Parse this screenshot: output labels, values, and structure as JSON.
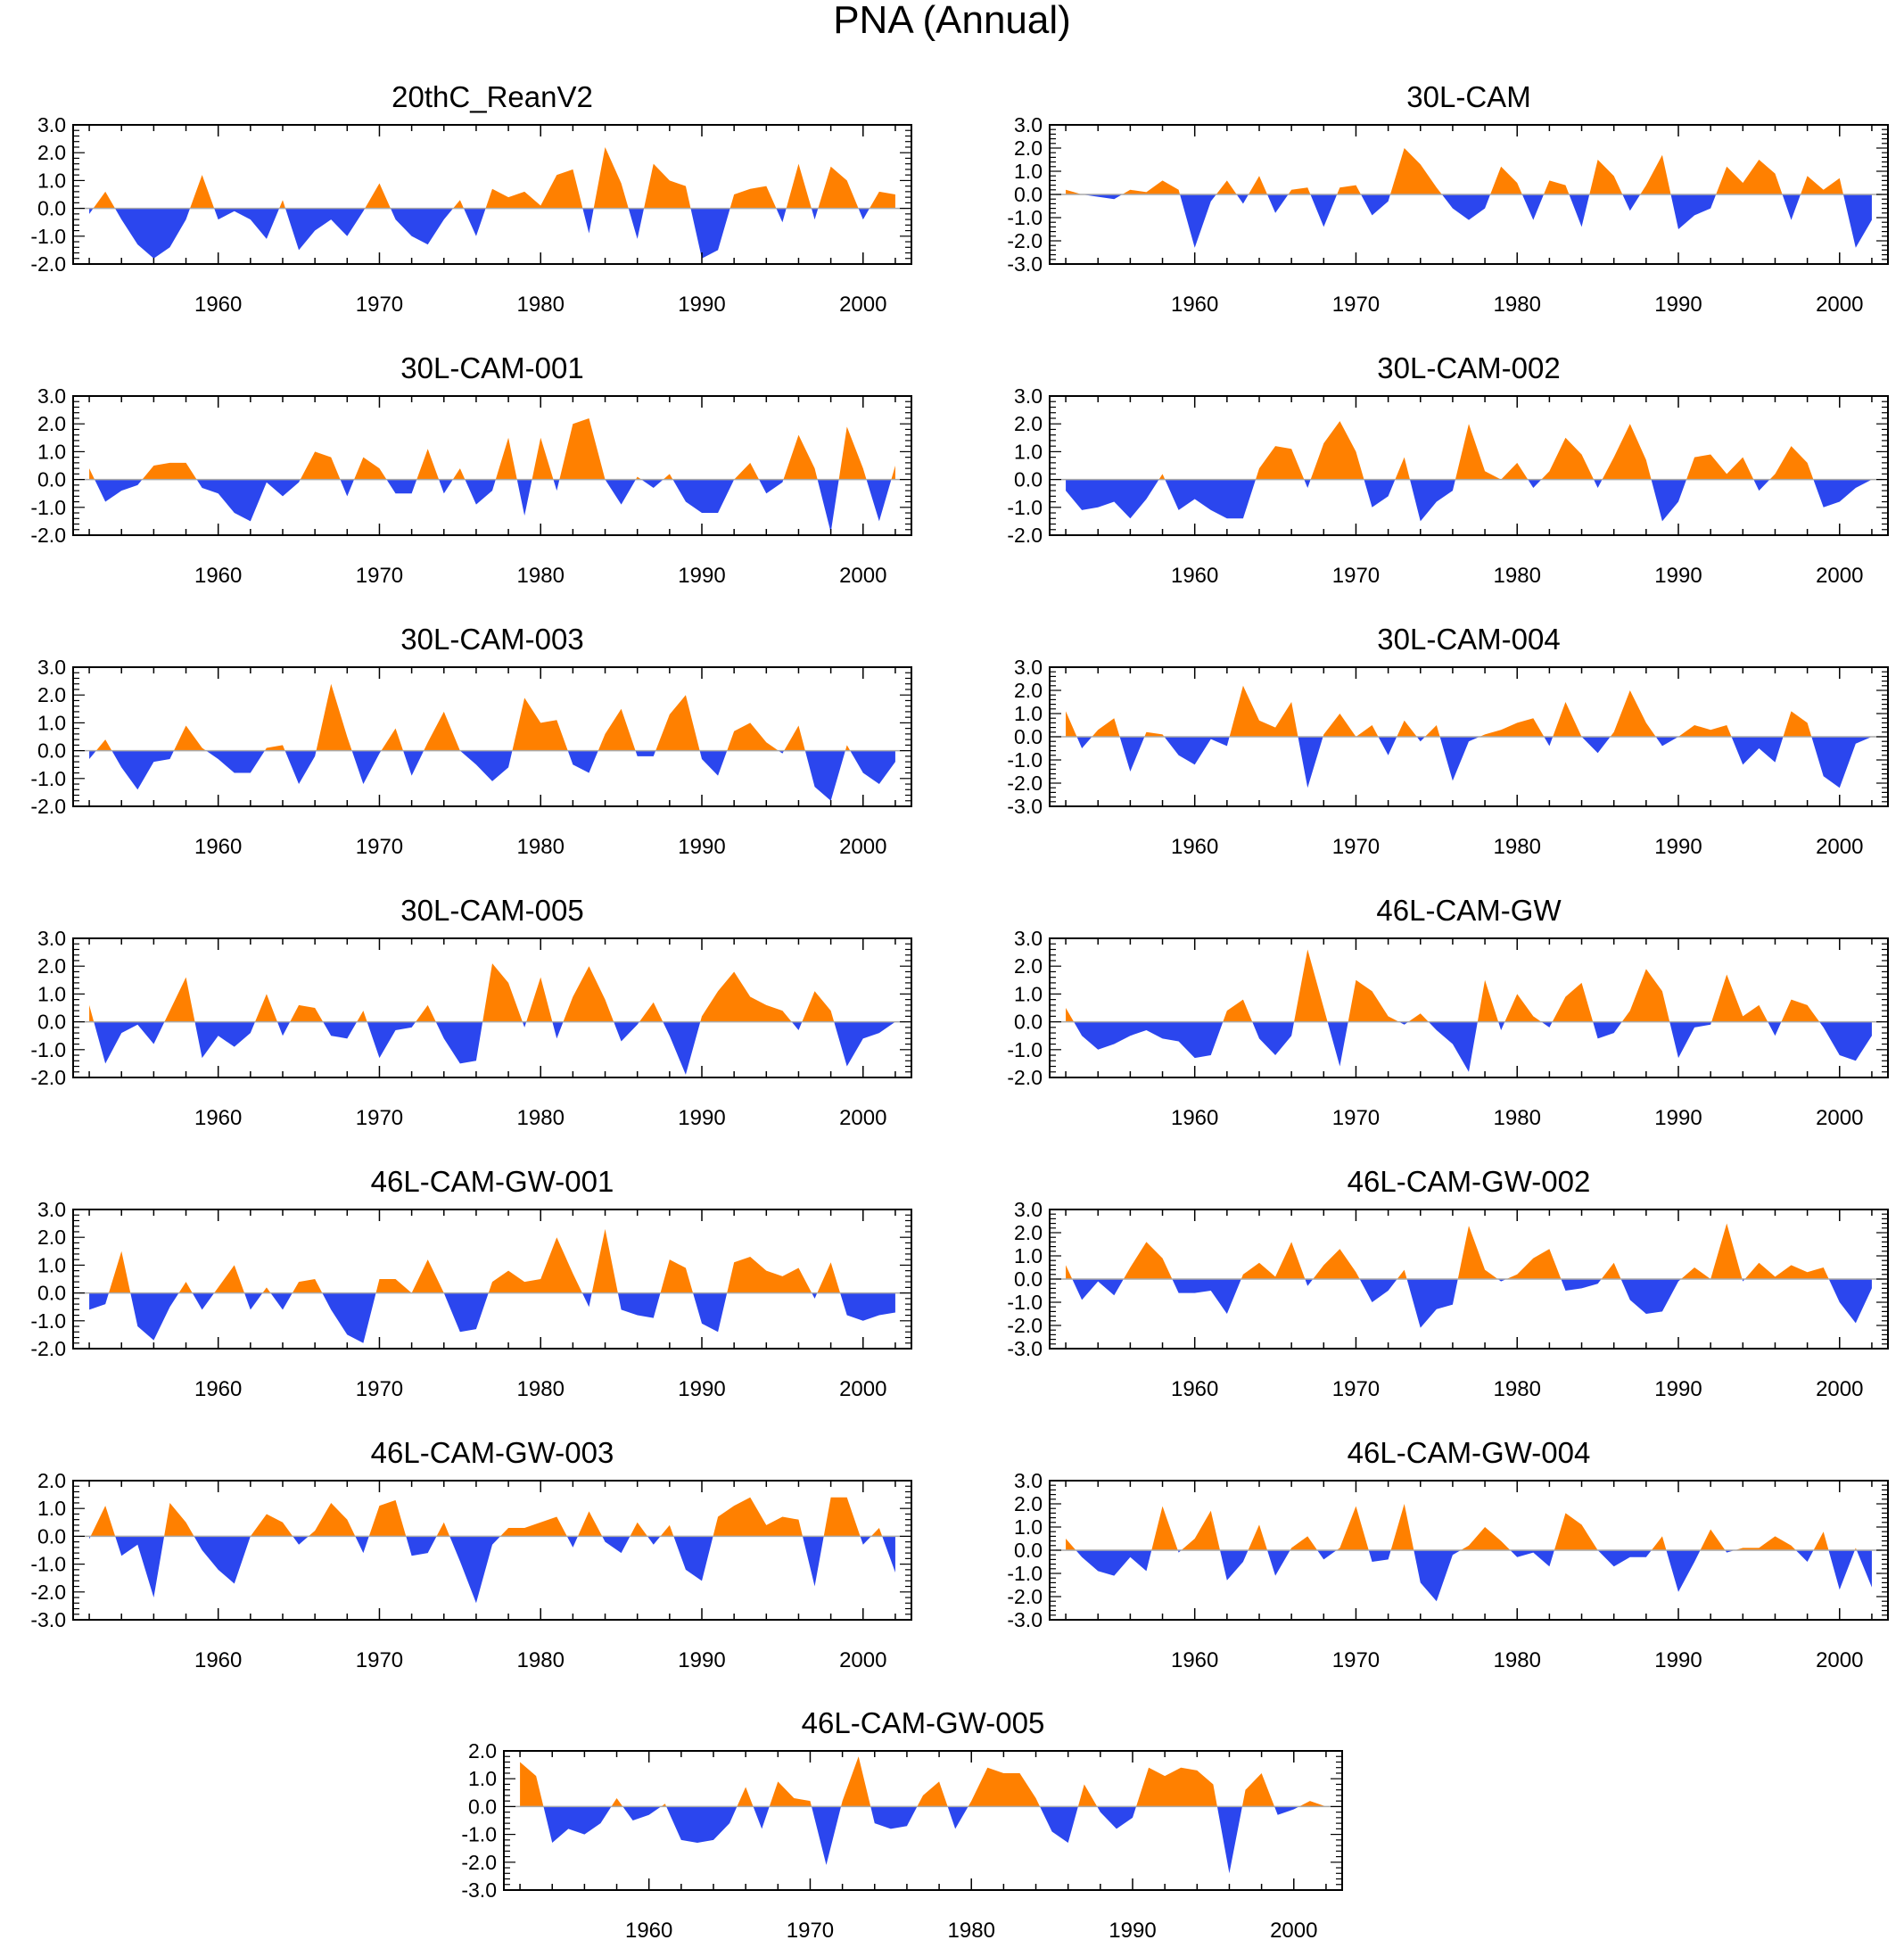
{
  "figure_title": "PNA (Annual)",
  "colors": {
    "positive": "#ff8000",
    "negative": "#2b46ee",
    "axis": "#000000",
    "zero_line": "#aaaaaa"
  },
  "chart_data": [
    {
      "type": "area",
      "title": "20thC_ReanV2",
      "x_start": 1952,
      "xlim": [
        1951,
        2003
      ],
      "ylim": [
        -2,
        3
      ],
      "yticks": [
        3,
        2,
        1,
        0,
        -1,
        -2
      ],
      "xticks": [
        1960,
        1970,
        1980,
        1990,
        2000
      ],
      "values": [
        -0.2,
        0.6,
        -0.4,
        -1.3,
        -1.8,
        -1.4,
        -0.4,
        1.2,
        -0.4,
        -0.1,
        -0.4,
        -1.1,
        0.3,
        -1.5,
        -0.8,
        -0.4,
        -1.0,
        -0.1,
        0.9,
        -0.4,
        -1.0,
        -1.3,
        -0.4,
        0.3,
        -1.0,
        0.7,
        0.4,
        0.6,
        0.1,
        1.2,
        1.4,
        -0.9,
        2.2,
        0.9,
        -1.1,
        1.6,
        1.0,
        0.8,
        -1.8,
        -1.5,
        0.5,
        0.7,
        0.8,
        -0.5,
        1.6,
        -0.4,
        1.5,
        1.0,
        -0.4,
        0.6,
        0.5
      ]
    },
    {
      "type": "area",
      "title": "30L-CAM",
      "x_start": 1952,
      "xlim": [
        1951,
        2003
      ],
      "ylim": [
        -3,
        3
      ],
      "yticks": [
        3,
        2,
        1,
        0,
        -1,
        -2,
        -3
      ],
      "xticks": [
        1960,
        1970,
        1980,
        1990,
        2000
      ],
      "values": [
        0.2,
        0.0,
        -0.1,
        -0.2,
        0.2,
        0.1,
        0.6,
        0.2,
        -2.3,
        -0.3,
        0.6,
        -0.4,
        0.8,
        -0.8,
        0.2,
        0.3,
        -1.4,
        0.3,
        0.4,
        -0.9,
        -0.3,
        2.0,
        1.3,
        0.3,
        -0.6,
        -1.1,
        -0.6,
        1.2,
        0.5,
        -1.1,
        0.6,
        0.4,
        -1.4,
        1.5,
        0.8,
        -0.7,
        0.4,
        1.7,
        -1.5,
        -0.9,
        -0.6,
        1.2,
        0.5,
        1.5,
        0.9,
        -1.1,
        0.8,
        0.2,
        0.7,
        -2.3,
        -1.1
      ]
    },
    {
      "type": "area",
      "title": "30L-CAM-001",
      "x_start": 1952,
      "xlim": [
        1951,
        2003
      ],
      "ylim": [
        -2,
        3
      ],
      "yticks": [
        3,
        2,
        1,
        0,
        -1,
        -2
      ],
      "xticks": [
        1960,
        1970,
        1980,
        1990,
        2000
      ],
      "values": [
        0.4,
        -0.8,
        -0.4,
        -0.2,
        0.5,
        0.6,
        0.6,
        -0.3,
        -0.5,
        -1.2,
        -1.5,
        -0.1,
        -0.6,
        -0.1,
        1.0,
        0.8,
        -0.6,
        0.8,
        0.4,
        -0.5,
        -0.5,
        1.1,
        -0.5,
        0.4,
        -0.9,
        -0.4,
        1.5,
        -1.3,
        1.5,
        -0.4,
        2.0,
        2.2,
        0.0,
        -0.9,
        0.1,
        -0.3,
        0.2,
        -0.8,
        -1.2,
        -1.2,
        0.0,
        0.6,
        -0.5,
        -0.1,
        1.6,
        0.4,
        -1.9,
        1.9,
        0.4,
        -1.5,
        0.5
      ]
    },
    {
      "type": "area",
      "title": "30L-CAM-002",
      "x_start": 1952,
      "xlim": [
        1951,
        2003
      ],
      "ylim": [
        -2,
        3
      ],
      "yticks": [
        3,
        2,
        1,
        0,
        -1,
        -2
      ],
      "xticks": [
        1960,
        1970,
        1980,
        1990,
        2000
      ],
      "values": [
        -0.4,
        -1.1,
        -1.0,
        -0.8,
        -1.4,
        -0.7,
        0.2,
        -1.1,
        -0.7,
        -1.1,
        -1.4,
        -1.4,
        0.4,
        1.2,
        1.1,
        -0.3,
        1.3,
        2.1,
        1.0,
        -1.0,
        -0.6,
        0.8,
        -1.5,
        -0.8,
        -0.4,
        2.0,
        0.3,
        0.0,
        0.6,
        -0.3,
        0.3,
        1.5,
        0.9,
        -0.3,
        0.8,
        2.0,
        0.7,
        -1.5,
        -0.8,
        0.8,
        0.9,
        0.2,
        0.8,
        -0.4,
        0.2,
        1.2,
        0.6,
        -1.0,
        -0.8,
        -0.3,
        0.0
      ]
    },
    {
      "type": "area",
      "title": "30L-CAM-003",
      "x_start": 1952,
      "xlim": [
        1951,
        2003
      ],
      "ylim": [
        -2,
        3
      ],
      "yticks": [
        3,
        2,
        1,
        0,
        -1,
        -2
      ],
      "xticks": [
        1960,
        1970,
        1980,
        1990,
        2000
      ],
      "values": [
        -0.3,
        0.4,
        -0.6,
        -1.4,
        -0.4,
        -0.3,
        0.9,
        0.1,
        -0.3,
        -0.8,
        -0.8,
        0.1,
        0.2,
        -1.2,
        -0.2,
        2.4,
        0.5,
        -1.2,
        -0.1,
        0.8,
        -0.9,
        0.3,
        1.4,
        0.0,
        -0.5,
        -1.1,
        -0.6,
        1.9,
        1.0,
        1.1,
        -0.5,
        -0.8,
        0.6,
        1.5,
        -0.2,
        -0.2,
        1.3,
        2.0,
        -0.3,
        -0.9,
        0.7,
        1.0,
        0.3,
        -0.1,
        0.9,
        -1.3,
        -1.8,
        0.2,
        -0.8,
        -1.2,
        -0.4
      ]
    },
    {
      "type": "area",
      "title": "30L-CAM-004",
      "x_start": 1952,
      "xlim": [
        1951,
        2003
      ],
      "ylim": [
        -3,
        3
      ],
      "yticks": [
        3,
        2,
        1,
        0,
        -1,
        -2,
        -3
      ],
      "xticks": [
        1960,
        1970,
        1980,
        1990,
        2000
      ],
      "values": [
        1.1,
        -0.5,
        0.3,
        0.8,
        -1.5,
        0.2,
        0.1,
        -0.8,
        -1.2,
        -0.1,
        -0.4,
        2.2,
        0.7,
        0.4,
        1.5,
        -2.2,
        0.1,
        1.0,
        0.0,
        0.5,
        -0.8,
        0.7,
        -0.2,
        0.5,
        -1.9,
        -0.2,
        0.1,
        0.3,
        0.6,
        0.8,
        -0.4,
        1.5,
        0.0,
        -0.7,
        0.2,
        2.0,
        0.6,
        -0.4,
        0.0,
        0.5,
        0.3,
        0.5,
        -1.2,
        -0.5,
        -1.1,
        1.1,
        0.6,
        -1.7,
        -2.2,
        -0.3,
        0.0
      ]
    },
    {
      "type": "area",
      "title": "30L-CAM-005",
      "x_start": 1952,
      "xlim": [
        1951,
        2003
      ],
      "ylim": [
        -2,
        3
      ],
      "yticks": [
        3,
        2,
        1,
        0,
        -1,
        -2
      ],
      "xticks": [
        1960,
        1970,
        1980,
        1990,
        2000
      ],
      "values": [
        0.6,
        -1.5,
        -0.4,
        -0.1,
        -0.8,
        0.4,
        1.6,
        -1.3,
        -0.5,
        -0.9,
        -0.4,
        1.0,
        -0.5,
        0.6,
        0.5,
        -0.5,
        -0.6,
        0.4,
        -1.3,
        -0.3,
        -0.2,
        0.6,
        -0.6,
        -1.5,
        -1.4,
        2.1,
        1.4,
        -0.2,
        1.6,
        -0.6,
        0.9,
        2.0,
        0.8,
        -0.7,
        -0.1,
        0.7,
        -0.5,
        -1.9,
        0.2,
        1.1,
        1.8,
        0.9,
        0.6,
        0.4,
        -0.3,
        1.1,
        0.4,
        -1.6,
        -0.6,
        -0.4,
        0.0
      ]
    },
    {
      "type": "area",
      "title": "46L-CAM-GW",
      "x_start": 1952,
      "xlim": [
        1951,
        2003
      ],
      "ylim": [
        -2,
        3
      ],
      "yticks": [
        3,
        2,
        1,
        0,
        -1,
        -2
      ],
      "xticks": [
        1960,
        1970,
        1980,
        1990,
        2000
      ],
      "values": [
        0.5,
        -0.5,
        -1.0,
        -0.8,
        -0.5,
        -0.3,
        -0.6,
        -0.7,
        -1.3,
        -1.2,
        0.4,
        0.8,
        -0.6,
        -1.2,
        -0.5,
        2.6,
        0.5,
        -1.6,
        1.5,
        1.1,
        0.2,
        -0.1,
        0.3,
        -0.3,
        -0.8,
        -1.8,
        1.5,
        -0.3,
        1.0,
        0.2,
        -0.2,
        0.9,
        1.4,
        -0.6,
        -0.4,
        0.4,
        1.9,
        1.1,
        -1.3,
        -0.2,
        -0.1,
        1.7,
        0.2,
        0.6,
        -0.5,
        0.8,
        0.6,
        -0.2,
        -1.2,
        -1.4,
        -0.5
      ]
    },
    {
      "type": "area",
      "title": "46L-CAM-GW-001",
      "x_start": 1952,
      "xlim": [
        1951,
        2003
      ],
      "ylim": [
        -2,
        3
      ],
      "yticks": [
        3,
        2,
        1,
        0,
        -1,
        -2
      ],
      "xticks": [
        1960,
        1970,
        1980,
        1990,
        2000
      ],
      "values": [
        -0.6,
        -0.4,
        1.5,
        -1.2,
        -1.7,
        -0.5,
        0.4,
        -0.6,
        0.2,
        1.0,
        -0.6,
        0.2,
        -0.6,
        0.4,
        0.5,
        -0.6,
        -1.5,
        -1.8,
        0.5,
        0.5,
        0.0,
        1.2,
        0.0,
        -1.4,
        -1.3,
        0.4,
        0.8,
        0.4,
        0.5,
        2.0,
        0.7,
        -0.5,
        2.3,
        -0.6,
        -0.8,
        -0.9,
        1.2,
        0.9,
        -1.1,
        -1.4,
        1.1,
        1.3,
        0.8,
        0.6,
        0.9,
        -0.2,
        1.1,
        -0.8,
        -1.0,
        -0.8,
        -0.7
      ]
    },
    {
      "type": "area",
      "title": "46L-CAM-GW-002",
      "x_start": 1952,
      "xlim": [
        1951,
        2003
      ],
      "ylim": [
        -3,
        3
      ],
      "yticks": [
        3,
        2,
        1,
        0,
        -1,
        -2,
        -3
      ],
      "xticks": [
        1960,
        1970,
        1980,
        1990,
        2000
      ],
      "values": [
        0.6,
        -0.9,
        -0.1,
        -0.7,
        0.5,
        1.6,
        0.9,
        -0.6,
        -0.6,
        -0.5,
        -1.5,
        0.2,
        0.7,
        0.1,
        1.6,
        -0.3,
        0.6,
        1.3,
        0.3,
        -1.0,
        -0.5,
        0.4,
        -2.1,
        -1.3,
        -1.1,
        2.3,
        0.4,
        -0.1,
        0.2,
        0.9,
        1.3,
        -0.5,
        -0.4,
        -0.2,
        0.7,
        -0.9,
        -1.5,
        -1.4,
        -0.1,
        0.5,
        0.0,
        2.4,
        -0.1,
        0.7,
        0.1,
        0.6,
        0.3,
        0.5,
        -1.0,
        -1.9,
        -0.4
      ]
    },
    {
      "type": "area",
      "title": "46L-CAM-GW-003",
      "x_start": 1952,
      "xlim": [
        1951,
        2003
      ],
      "ylim": [
        -3,
        2
      ],
      "yticks": [
        2,
        1,
        0,
        -1,
        -2,
        -3
      ],
      "xticks": [
        1960,
        1970,
        1980,
        1990,
        2000
      ],
      "values": [
        -0.1,
        1.1,
        -0.7,
        -0.3,
        -2.2,
        1.2,
        0.5,
        -0.5,
        -1.2,
        -1.7,
        0.0,
        0.8,
        0.5,
        -0.3,
        0.2,
        1.2,
        0.6,
        -0.6,
        1.1,
        1.3,
        -0.7,
        -0.6,
        0.5,
        -0.9,
        -2.4,
        -0.3,
        0.3,
        0.3,
        0.5,
        0.7,
        -0.4,
        0.9,
        -0.2,
        -0.6,
        0.5,
        -0.3,
        0.4,
        -1.2,
        -1.6,
        0.7,
        1.1,
        1.4,
        0.4,
        0.7,
        0.6,
        -1.8,
        1.4,
        1.4,
        -0.3,
        0.3,
        -1.3
      ]
    },
    {
      "type": "area",
      "title": "46L-CAM-GW-004",
      "x_start": 1952,
      "xlim": [
        1951,
        2003
      ],
      "ylim": [
        -3,
        3
      ],
      "yticks": [
        3,
        2,
        1,
        0,
        -1,
        -2,
        -3
      ],
      "xticks": [
        1960,
        1970,
        1980,
        1990,
        2000
      ],
      "values": [
        0.5,
        -0.3,
        -0.9,
        -1.1,
        -0.3,
        -0.9,
        1.9,
        -0.1,
        0.5,
        1.7,
        -1.3,
        -0.5,
        1.1,
        -1.1,
        0.1,
        0.6,
        -0.4,
        0.1,
        1.9,
        -0.5,
        -0.4,
        2.0,
        -1.4,
        -2.2,
        -0.2,
        0.2,
        1.0,
        0.4,
        -0.3,
        -0.1,
        -0.7,
        1.6,
        1.1,
        0.0,
        -0.7,
        -0.3,
        -0.3,
        0.6,
        -1.8,
        -0.5,
        0.9,
        -0.1,
        0.1,
        0.1,
        0.6,
        0.2,
        -0.5,
        0.8,
        -1.7,
        0.1,
        -1.6
      ]
    },
    {
      "type": "area",
      "title": "46L-CAM-GW-005",
      "x_start": 1952,
      "xlim": [
        1951,
        2003
      ],
      "ylim": [
        -3,
        2
      ],
      "yticks": [
        2,
        1,
        0,
        -1,
        -2,
        -3
      ],
      "xticks": [
        1960,
        1970,
        1980,
        1990,
        2000
      ],
      "values": [
        1.6,
        1.1,
        -1.3,
        -0.8,
        -1.0,
        -0.6,
        0.3,
        -0.5,
        -0.3,
        0.1,
        -1.2,
        -1.3,
        -1.2,
        -0.6,
        0.7,
        -0.8,
        0.9,
        0.3,
        0.2,
        -2.1,
        0.2,
        1.8,
        -0.6,
        -0.8,
        -0.7,
        0.4,
        0.9,
        -0.8,
        0.2,
        1.4,
        1.2,
        1.2,
        0.3,
        -0.9,
        -1.3,
        0.8,
        -0.2,
        -0.8,
        -0.4,
        1.4,
        1.1,
        1.4,
        1.3,
        0.8,
        -2.4,
        0.6,
        1.2,
        -0.3,
        -0.1,
        0.2,
        0.0
      ]
    }
  ]
}
